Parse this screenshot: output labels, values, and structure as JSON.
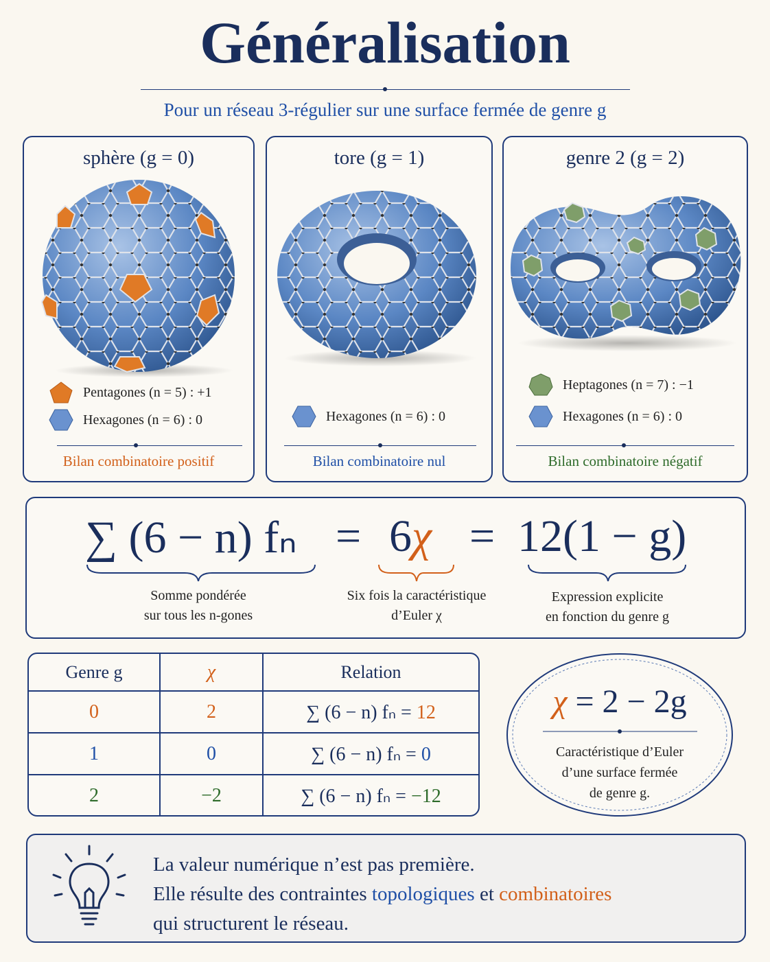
{
  "header": {
    "title": "Généralisation",
    "subtitle": "Pour un réseau 3-régulier sur une surface fermée de genre g"
  },
  "panels": [
    {
      "title": "sphère (g = 0)",
      "legend": [
        "Pentagones (n = 5) : +1",
        "Hexagones (n = 6) : 0"
      ],
      "caption": "Bilan combinatoire positif"
    },
    {
      "title": "tore (g = 1)",
      "legend": [
        "Hexagones (n = 6) : 0"
      ],
      "caption": "Bilan combinatoire nul"
    },
    {
      "title": "genre 2 (g = 2)",
      "legend": [
        "Heptagones (n = 7) : −1",
        "Hexagones (n = 6) : 0"
      ],
      "caption": "Bilan combinatoire négatif"
    }
  ],
  "formula": {
    "sum": "∑ (6 − n) fₙ",
    "equals": "=",
    "six": "6",
    "chi": "χ",
    "twelve": "12(1 − g)",
    "annotations": [
      [
        "Somme pondérée",
        "sur tous les n-gones"
      ],
      [
        "Six fois la caractéristique",
        "d’Euler χ"
      ],
      [
        "Expression explicite",
        "en fonction du genre g"
      ]
    ]
  },
  "table": {
    "header": [
      "Genre g",
      "χ",
      "Relation"
    ],
    "rows": [
      {
        "genre": "0",
        "chi": "2",
        "relation": "∑ (6 − n) fₙ =",
        "result": "12"
      },
      {
        "genre": "1",
        "chi": "0",
        "relation": "∑ (6 − n) fₙ =",
        "result": "0"
      },
      {
        "genre": "2",
        "chi": "−2",
        "relation": "∑ (6 − n) fₙ =",
        "result": "−12"
      }
    ]
  },
  "euler": {
    "chi": "χ",
    "rest": "= 2 − 2g",
    "caption": [
      "Caractéristique d’Euler",
      "d’une surface fermée",
      "de genre g."
    ]
  },
  "note": {
    "line1": "La valeur numérique n’est pas première.",
    "line2_start": "Elle résulte des contraintes",
    "topological": "topologiques",
    "and": "et",
    "combinatorial": "combinatoires",
    "line3": "qui structurent le réseau."
  }
}
